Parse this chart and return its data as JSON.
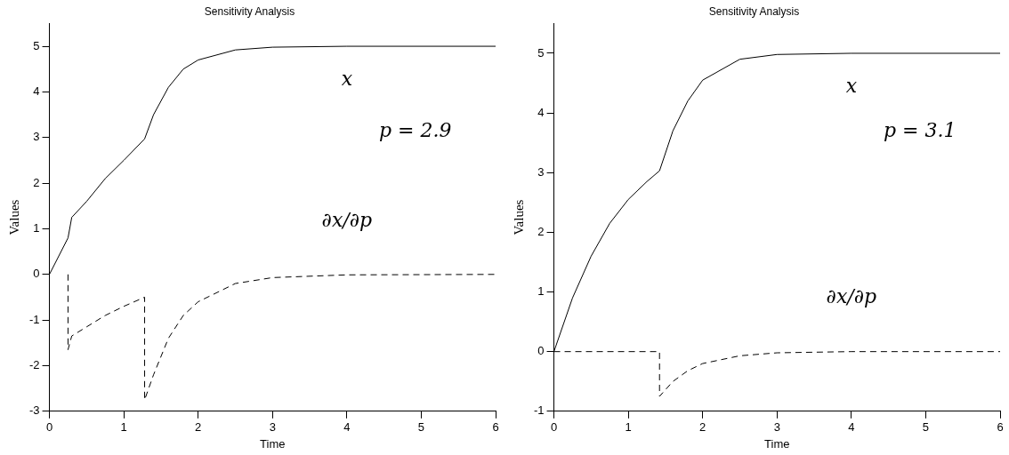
{
  "chart_data": [
    {
      "type": "line",
      "title": "Sensitivity Analysis",
      "xlabel": "Time",
      "ylabel": "Values",
      "xlim": [
        0,
        6
      ],
      "xticks": [
        0,
        1,
        2,
        3,
        4,
        5,
        6
      ],
      "ylim": [
        -3,
        5.5
      ],
      "yticks": [
        -3,
        -2,
        -1,
        0,
        1,
        2,
        3,
        4,
        5
      ],
      "grid": false,
      "legend": false,
      "series": [
        {
          "name": "x",
          "color": "#000000",
          "line_style": "solid",
          "x": [
            0,
            0.25,
            0.3,
            0.5,
            0.75,
            1,
            1.28,
            1.4,
            1.6,
            1.8,
            2,
            2.5,
            3,
            4,
            6
          ],
          "values": [
            0,
            0.8,
            1.25,
            1.6,
            2.1,
            2.5,
            2.97,
            3.5,
            4.1,
            4.5,
            4.7,
            4.92,
            4.98,
            5,
            5
          ]
        },
        {
          "name": "∂x/∂p",
          "color": "#000000",
          "line_style": "dashed",
          "x": [
            0.25,
            0.25,
            0.3,
            0.5,
            0.75,
            1,
            1.28,
            1.28,
            1.4,
            1.6,
            1.8,
            2,
            2.5,
            3,
            4,
            6
          ],
          "values": [
            0,
            -1.65,
            -1.35,
            -1.15,
            -0.9,
            -0.7,
            -0.5,
            -2.75,
            -2.2,
            -1.4,
            -0.9,
            -0.6,
            -0.2,
            -0.07,
            -0.01,
            0
          ]
        }
      ],
      "annotations": [
        "p = 2.9"
      ]
    },
    {
      "type": "line",
      "title": "Sensitivity Analysis",
      "xlabel": "Time",
      "ylabel": "Values",
      "xlim": [
        0,
        6
      ],
      "xticks": [
        0,
        1,
        2,
        3,
        4,
        5,
        6
      ],
      "ylim": [
        -1,
        5.5
      ],
      "yticks": [
        -1,
        0,
        1,
        2,
        3,
        4,
        5
      ],
      "grid": false,
      "legend": false,
      "series": [
        {
          "name": "x",
          "color": "#000000",
          "line_style": "solid",
          "x": [
            0,
            0.25,
            0.5,
            0.75,
            1,
            1.25,
            1.42,
            1.6,
            1.8,
            2,
            2.5,
            3,
            4,
            6
          ],
          "values": [
            0,
            0.9,
            1.6,
            2.15,
            2.55,
            2.85,
            3.03,
            3.7,
            4.2,
            4.55,
            4.9,
            4.98,
            5,
            5
          ]
        },
        {
          "name": "∂x/∂p",
          "color": "#000000",
          "line_style": "dashed",
          "x": [
            0,
            1.42,
            1.42,
            1.6,
            1.8,
            2,
            2.5,
            3,
            4,
            6
          ],
          "values": [
            0,
            0,
            -0.75,
            -0.5,
            -0.32,
            -0.2,
            -0.07,
            -0.02,
            0,
            0
          ]
        }
      ],
      "annotations": [
        "p = 3.1"
      ]
    }
  ]
}
